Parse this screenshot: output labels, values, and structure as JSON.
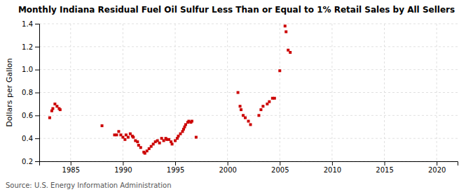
{
  "chart_data": {
    "type": "scatter",
    "title": "Monthly Indiana Residual Fuel Oil Sulfur Less Than or Equal to 1% Retail Sales by All Sellers",
    "ylabel": "Dollars per Gallon",
    "annotations": [
      "Source: U.S. Energy Information Administration"
    ],
    "color": "#cc0000",
    "marker": "square",
    "grid": true,
    "xlim": [
      1982,
      2022
    ],
    "ylim": [
      0.2,
      1.4
    ],
    "xticks": [
      1985,
      1990,
      1995,
      2000,
      2005,
      2010,
      2015,
      2020
    ],
    "yticks": [
      0.2,
      0.4,
      0.6,
      0.8,
      {
        "value": 1,
        "label": "1.0"
      },
      1.2,
      1.4
    ],
    "x": [
      1983.0,
      1983.2,
      1983.3,
      1983.5,
      1983.7,
      1983.9,
      1984.0,
      1988.0,
      1989.2,
      1989.4,
      1989.6,
      1989.8,
      1990.0,
      1990.2,
      1990.3,
      1990.5,
      1990.7,
      1990.9,
      1991.0,
      1991.2,
      1991.4,
      1991.5,
      1991.7,
      1992.0,
      1992.1,
      1992.3,
      1992.5,
      1992.7,
      1992.9,
      1993.1,
      1993.3,
      1993.5,
      1993.7,
      1993.9,
      1994.1,
      1994.2,
      1994.4,
      1994.6,
      1994.7,
      1995.0,
      1995.2,
      1995.3,
      1995.5,
      1995.7,
      1995.8,
      1995.9,
      1996.0,
      1996.2,
      1996.3,
      1996.5,
      1996.6,
      1997.0,
      2001.0,
      2001.2,
      2001.3,
      2001.5,
      2001.7,
      2002.0,
      2002.2,
      2003.0,
      2003.2,
      2003.4,
      2003.8,
      2004.0,
      2004.3,
      2004.5,
      2005.0,
      2005.5,
      2005.6,
      2005.8,
      2006.0
    ],
    "values": [
      0.58,
      0.64,
      0.66,
      0.7,
      0.68,
      0.66,
      0.65,
      0.51,
      0.43,
      0.43,
      0.46,
      0.43,
      0.41,
      0.39,
      0.43,
      0.41,
      0.44,
      0.42,
      0.41,
      0.38,
      0.37,
      0.34,
      0.32,
      0.28,
      0.27,
      0.29,
      0.31,
      0.33,
      0.35,
      0.37,
      0.38,
      0.36,
      0.4,
      0.38,
      0.4,
      0.39,
      0.39,
      0.37,
      0.35,
      0.38,
      0.4,
      0.42,
      0.44,
      0.46,
      0.48,
      0.5,
      0.52,
      0.54,
      0.55,
      0.54,
      0.55,
      0.41,
      0.8,
      0.68,
      0.65,
      0.6,
      0.58,
      0.55,
      0.52,
      0.6,
      0.65,
      0.68,
      0.7,
      0.72,
      0.75,
      0.75,
      0.99,
      1.38,
      1.33,
      1.17,
      1.15
    ]
  }
}
